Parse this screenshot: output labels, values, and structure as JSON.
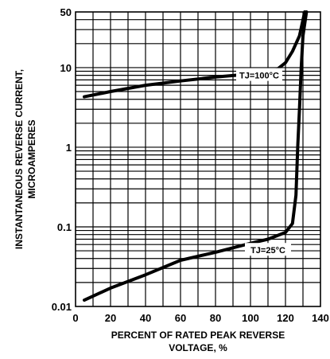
{
  "chart_data": {
    "type": "line",
    "xlabel_lines": [
      "PERCENT OF RATED PEAK REVERSE",
      "VOLTAGE, %"
    ],
    "ylabel_lines": [
      "INSTANTANEOUS REVERSE CURRENT,",
      "MICROAMPERES"
    ],
    "xlim": [
      0,
      140
    ],
    "ylim": [
      0.01,
      50
    ],
    "yscale": "log",
    "grid": true,
    "x_ticks": [
      {
        "value": 0,
        "label": "0"
      },
      {
        "value": 20,
        "label": "20"
      },
      {
        "value": 40,
        "label": "40"
      },
      {
        "value": 60,
        "label": "60"
      },
      {
        "value": 80,
        "label": "80"
      },
      {
        "value": 100,
        "label": "100"
      },
      {
        "value": 120,
        "label": "120"
      },
      {
        "value": 140,
        "label": "140"
      }
    ],
    "y_ticks": [
      {
        "value": 0.01,
        "label": "0.01"
      },
      {
        "value": 0.1,
        "label": "0.1"
      },
      {
        "value": 1,
        "label": "1"
      },
      {
        "value": 10,
        "label": "10"
      },
      {
        "value": 50,
        "label": "50"
      }
    ],
    "series": [
      {
        "name": "TJ=100°C",
        "x": [
          5,
          20,
          40,
          60,
          80,
          100,
          110,
          115,
          120,
          124,
          128,
          131
        ],
        "y": [
          4.3,
          5.0,
          6.0,
          6.8,
          7.6,
          8.3,
          8.8,
          9.4,
          11.5,
          16,
          25,
          50
        ]
      },
      {
        "name": "TJ=25°C",
        "x": [
          5,
          20,
          40,
          60,
          80,
          100,
          110,
          120,
          124,
          126,
          127,
          128,
          129,
          130,
          132
        ],
        "y": [
          0.012,
          0.017,
          0.025,
          0.038,
          0.048,
          0.062,
          0.07,
          0.085,
          0.11,
          0.25,
          1,
          3,
          10,
          25,
          50
        ]
      }
    ]
  }
}
